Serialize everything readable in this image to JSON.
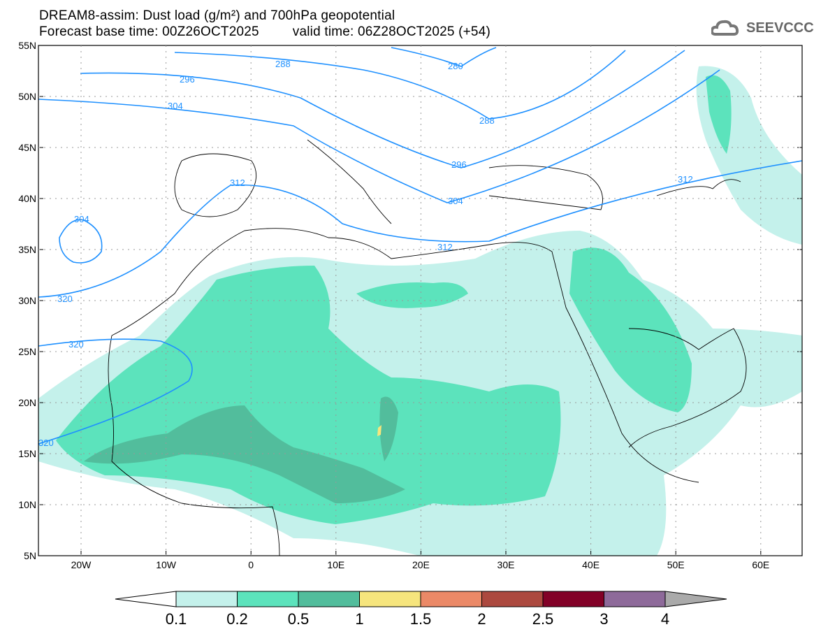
{
  "header": {
    "title": "DREAM8-assim: Dust load (g/m²) and 700hPa geopotential",
    "base_time": "Forecast base time: 00Z26OCT2025",
    "valid_time": "valid time: 06Z28OCT2025 (+54)"
  },
  "logo": {
    "text": "SEEVCCC"
  },
  "axes": {
    "lat_labels": [
      "55N",
      "50N",
      "45N",
      "40N",
      "35N",
      "30N",
      "25N",
      "20N",
      "15N",
      "10N",
      "5N"
    ],
    "lon_labels": [
      "20W",
      "10W",
      "0",
      "10E",
      "20E",
      "30E",
      "40E",
      "50E",
      "60E"
    ]
  },
  "contours": {
    "labels": [
      "288",
      "280",
      "296",
      "304",
      "288",
      "296",
      "304",
      "312",
      "312",
      "304",
      "312",
      "320",
      "320"
    ]
  },
  "colorbar": {
    "ticks": [
      "0.1",
      "0.2",
      "0.5",
      "1",
      "1.5",
      "2",
      "2.5",
      "3",
      "4"
    ],
    "colors": [
      "#c4f1eb",
      "#5ce3bc",
      "#52bd9c",
      "#f6e57d",
      "#eb8967",
      "#ac493f",
      "#820127",
      "#8e6a9a",
      "#aaaaaa"
    ]
  }
}
